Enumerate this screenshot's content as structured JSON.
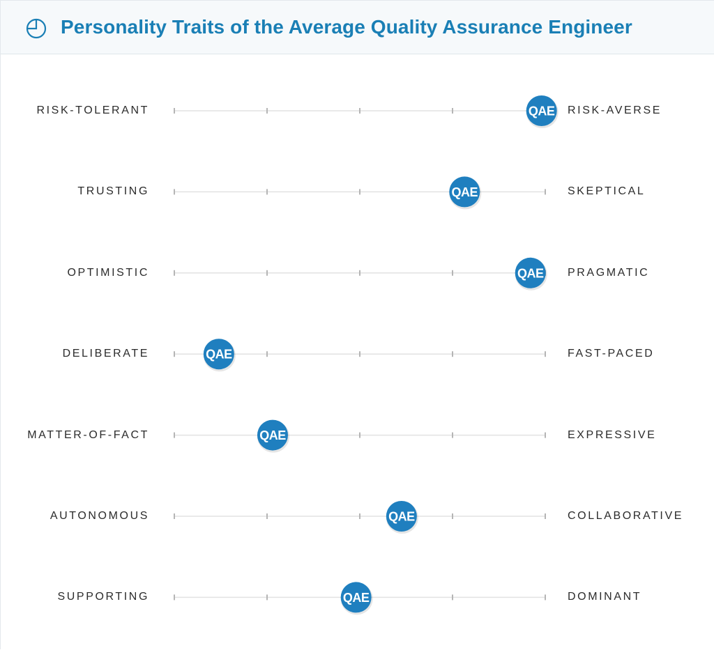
{
  "header": {
    "icon": "pie-chart-icon",
    "title": "Personality Traits of the Average Quality Assurance Engineer"
  },
  "colors": {
    "accent": "#1a7fb5",
    "marker": "#1f7fbf",
    "track": "#e2e2e2",
    "tick": "#b5b5b5",
    "label": "#2b2b2b"
  },
  "chart_data": {
    "type": "scatter",
    "title": "Personality Traits of the Average Quality Assurance Engineer",
    "marker_label": "QAE",
    "scale": [
      0,
      4
    ],
    "ticks": [
      0,
      1,
      2,
      3,
      4
    ],
    "grid": false,
    "traits": [
      {
        "left": "RISK-TOLERANT",
        "right": "RISK-AVERSE",
        "value": 3.96
      },
      {
        "left": "TRUSTING",
        "right": "SKEPTICAL",
        "value": 3.13
      },
      {
        "left": "OPTIMISTIC",
        "right": "PRAGMATIC",
        "value": 3.84
      },
      {
        "left": "DELIBERATE",
        "right": "FAST-PACED",
        "value": 0.48
      },
      {
        "left": "MATTER-OF-FACT",
        "right": "EXPRESSIVE",
        "value": 1.06
      },
      {
        "left": "AUTONOMOUS",
        "right": "COLLABORATIVE",
        "value": 2.45
      },
      {
        "left": "SUPPORTING",
        "right": "DOMINANT",
        "value": 1.96
      }
    ]
  }
}
